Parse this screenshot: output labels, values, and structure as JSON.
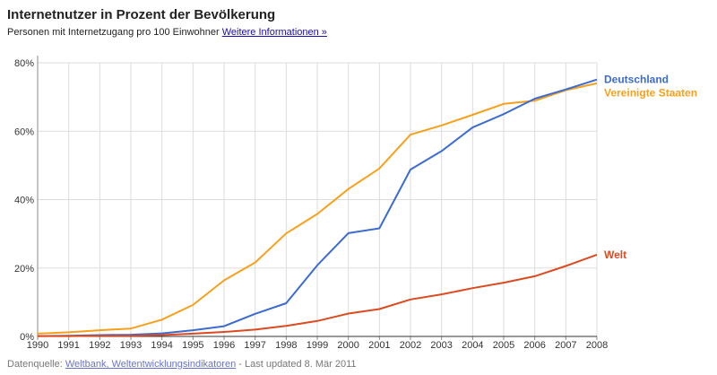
{
  "header": {
    "title": "Internetnutzer in Prozent der Bevölkerung",
    "subtitle": "Personen mit Internetzugang pro 100 Einwohner",
    "more_info_link": "Weitere Informationen »"
  },
  "footer": {
    "source_prefix": "Datenquelle:",
    "source_link": "Weltbank, Weltentwicklungsindikatoren",
    "updated": "- Last updated 8. Mär 2011"
  },
  "colors": {
    "usa": "#f7a01c",
    "germany": "#3c6ccf",
    "world": "#dc4a1f",
    "grid": "#dddddd",
    "axis": "#888888"
  },
  "chart_data": {
    "type": "line",
    "x": [
      1990,
      1991,
      1992,
      1993,
      1994,
      1995,
      1996,
      1997,
      1998,
      1999,
      2000,
      2001,
      2002,
      2003,
      2004,
      2005,
      2006,
      2007,
      2008
    ],
    "x_tick_labels": [
      "1990",
      "1991",
      "1992",
      "1993",
      "1994",
      "1995",
      "1996",
      "1997",
      "1998",
      "1999",
      "2000",
      "2001",
      "2002",
      "2003",
      "2004",
      "2005",
      "2006",
      "2007",
      "2008"
    ],
    "y_ticks": [
      0,
      20,
      40,
      60,
      80
    ],
    "y_tick_labels": [
      "0%",
      "20%",
      "40%",
      "60%",
      "80%"
    ],
    "ylim": [
      0,
      80
    ],
    "grid": true,
    "legend": "right-end labels",
    "series": [
      {
        "name": "Vereinigte Staaten",
        "color": "#f7a01c",
        "values": [
          0.8,
          1.2,
          1.8,
          2.3,
          4.9,
          9.2,
          16.4,
          21.6,
          30.1,
          35.8,
          43.1,
          49.1,
          59.0,
          61.7,
          64.8,
          68.0,
          68.9,
          72.0,
          74.0
        ]
      },
      {
        "name": "Deutschland",
        "color": "#3c6ccf",
        "values": [
          0.1,
          0.2,
          0.4,
          0.5,
          0.9,
          1.8,
          3.0,
          6.6,
          9.7,
          20.8,
          30.2,
          31.6,
          48.8,
          54.2,
          61.1,
          65.0,
          69.5,
          72.2,
          75.1
        ]
      },
      {
        "name": "Welt",
        "color": "#dc4a1f",
        "values": [
          0.1,
          0.1,
          0.2,
          0.2,
          0.4,
          0.8,
          1.3,
          2.0,
          3.1,
          4.5,
          6.7,
          8.0,
          10.8,
          12.3,
          14.1,
          15.7,
          17.6,
          20.6,
          23.9
        ]
      }
    ]
  }
}
